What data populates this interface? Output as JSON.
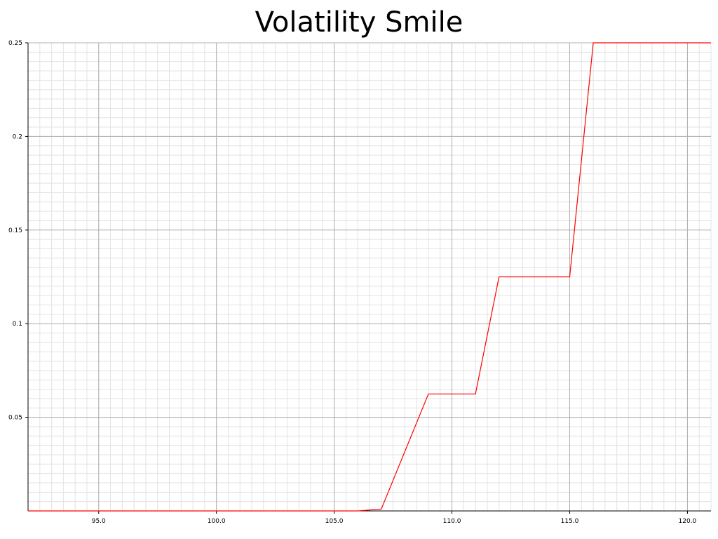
{
  "chart_data": {
    "type": "line",
    "title": "Volatility Smile",
    "xlabel": "",
    "ylabel": "",
    "xlim": [
      92.0,
      121.0
    ],
    "ylim": [
      0.0,
      0.25
    ],
    "x_ticks": [
      95.0,
      100.0,
      105.0,
      110.0,
      115.0,
      120.0
    ],
    "x_tick_labels": [
      "95.0",
      "100.0",
      "105.0",
      "110.0",
      "115.0",
      "120.0"
    ],
    "y_ticks": [
      0.05,
      0.1,
      0.15,
      0.2,
      0.25
    ],
    "y_tick_labels": [
      "0.05",
      "0.1",
      "0.15",
      "0.2",
      "0.25"
    ],
    "grid": true,
    "series": [
      {
        "color": "#ff0000",
        "x": [
          92.0,
          106.0,
          107.0,
          109.0,
          111.0,
          112.0,
          115.0,
          116.0,
          121.0
        ],
        "y": [
          0.0,
          0.0,
          0.001,
          0.0625,
          0.0625,
          0.125,
          0.125,
          0.25,
          0.25
        ]
      }
    ]
  }
}
